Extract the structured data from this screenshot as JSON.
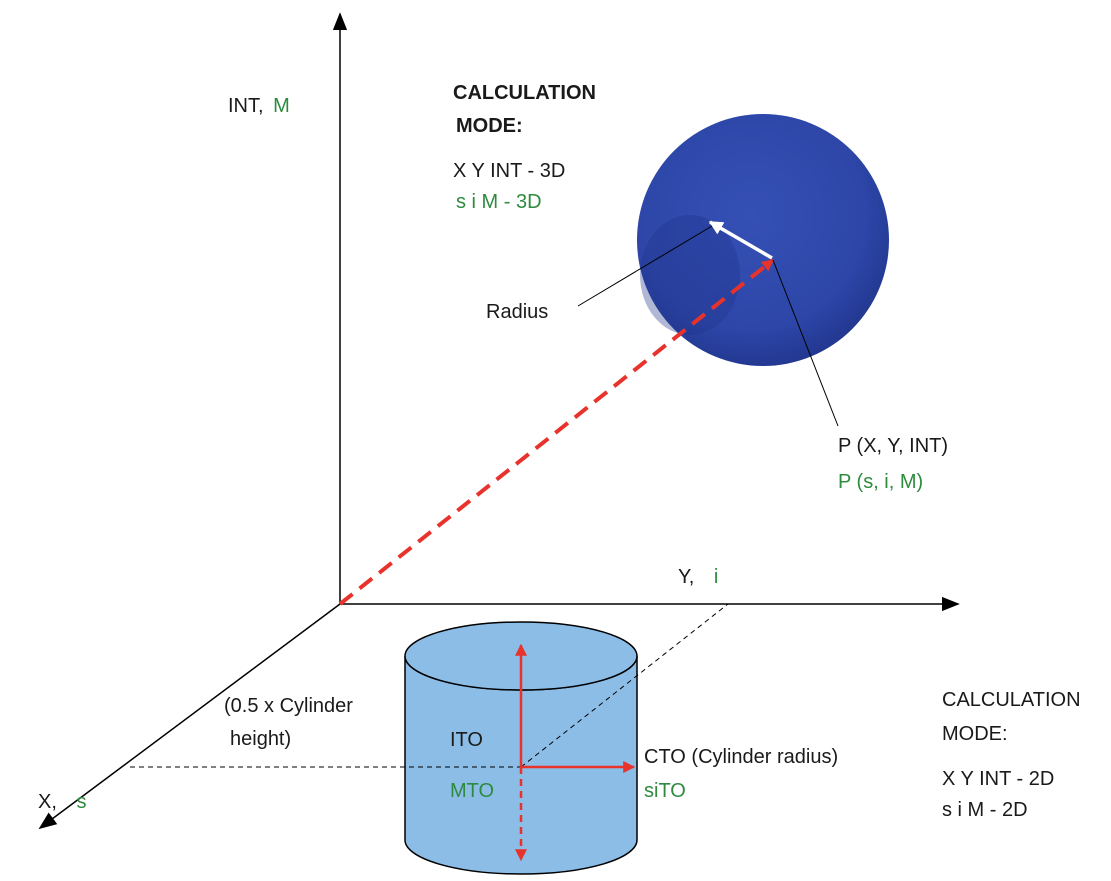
{
  "colors": {
    "text": "#1a1a1a",
    "green": "#2e8b3e",
    "red": "#e8322c",
    "sphere": "#2d46a8",
    "cylinder_fill": "#8cbde6",
    "outline": "#000000"
  },
  "axes": {
    "vertical": {
      "label": "INT,",
      "label_green": "M"
    },
    "horizontal": {
      "label": "Y,",
      "label_green": "i"
    },
    "diagonal": {
      "label": "X,",
      "label_green": "s"
    }
  },
  "mode_3d": {
    "title_line1": "CALCULATION",
    "title_line2": "MODE:",
    "line1": "X Y INT - 3D",
    "line2_green": "s i M - 3D"
  },
  "sphere": {
    "radius_label": "Radius",
    "point_label": "P (X, Y, INT)",
    "point_label_green": "P (s, i, M)"
  },
  "cylinder": {
    "half_height_line1": "(0.5 x Cylinder",
    "half_height_line2": "height)",
    "ito_label": "ITO",
    "mto_label_green": "MTO",
    "cto_label": "CTO (Cylinder radius)",
    "sito_label_green": "siTO"
  },
  "mode_2d": {
    "title_line1": "CALCULATION",
    "title_line2": "MODE:",
    "line1": "X Y INT - 2D",
    "line2": "s i M - 2D"
  }
}
